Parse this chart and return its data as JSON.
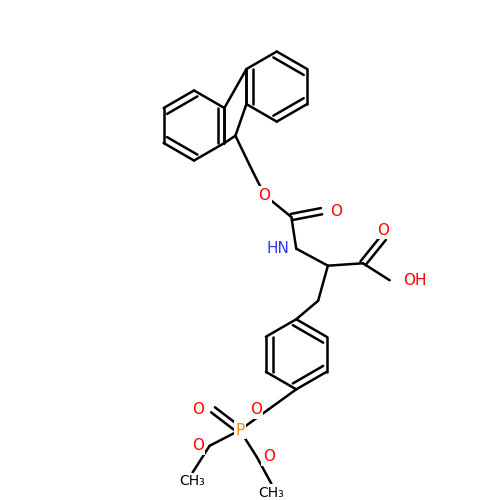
{
  "bg_color": "#ffffff",
  "bond_color": "#000000",
  "bond_width": 1.8,
  "atom_colors": {
    "O": "#ff0000",
    "N": "#3333ff",
    "P": "#ff8c00",
    "C": "#000000"
  },
  "font_size": 10,
  "figsize": [
    5.0,
    5.0
  ],
  "dpi": 100,
  "xlim": [
    0,
    10
  ],
  "ylim": [
    0,
    10
  ]
}
